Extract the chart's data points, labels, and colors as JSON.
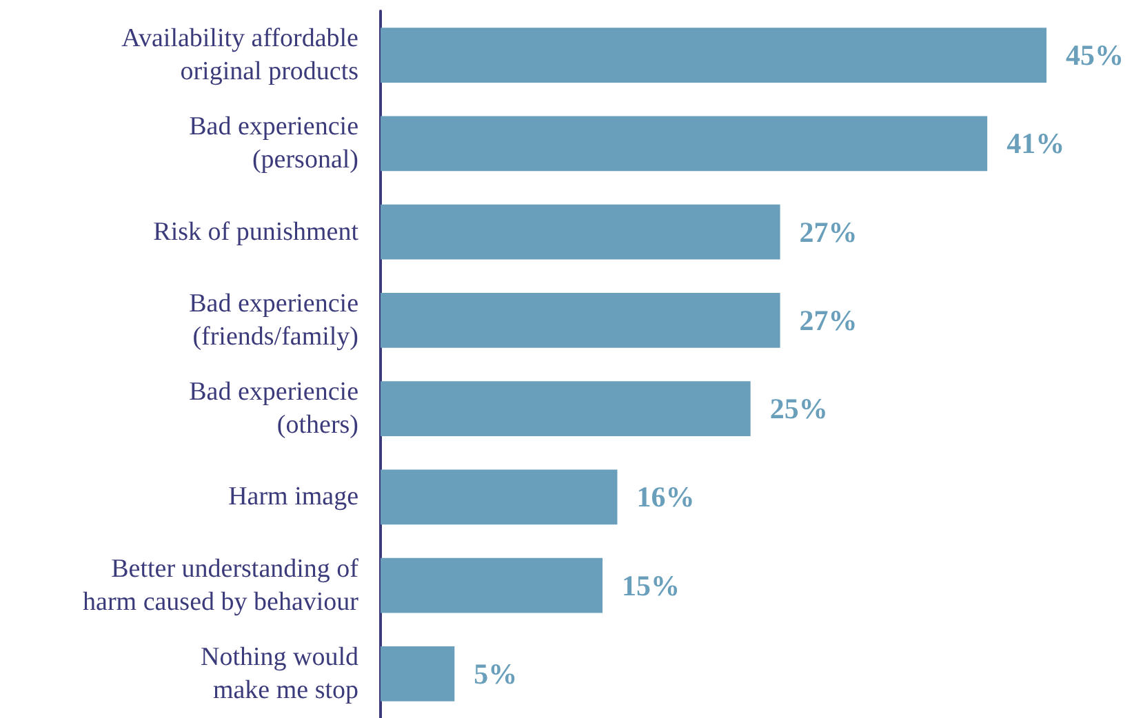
{
  "chart_data": {
    "type": "bar",
    "orientation": "horizontal",
    "categories": [
      "Availability affordable\noriginal products",
      "Bad experiencie\n(personal)",
      "Risk of punishment",
      "Bad experiencie\n(friends/family)",
      "Bad experiencie\n(others)",
      "Harm image",
      "Better understanding of\nharm caused by behaviour",
      "Nothing would\nmake me stop"
    ],
    "values": [
      45,
      41,
      27,
      27,
      25,
      16,
      15,
      5
    ],
    "value_labels": [
      "45%",
      "41%",
      "27%",
      "27%",
      "25%",
      "16%",
      "15%",
      "5%"
    ],
    "color": "#6a9fbb",
    "tick_labels": "y"
  }
}
